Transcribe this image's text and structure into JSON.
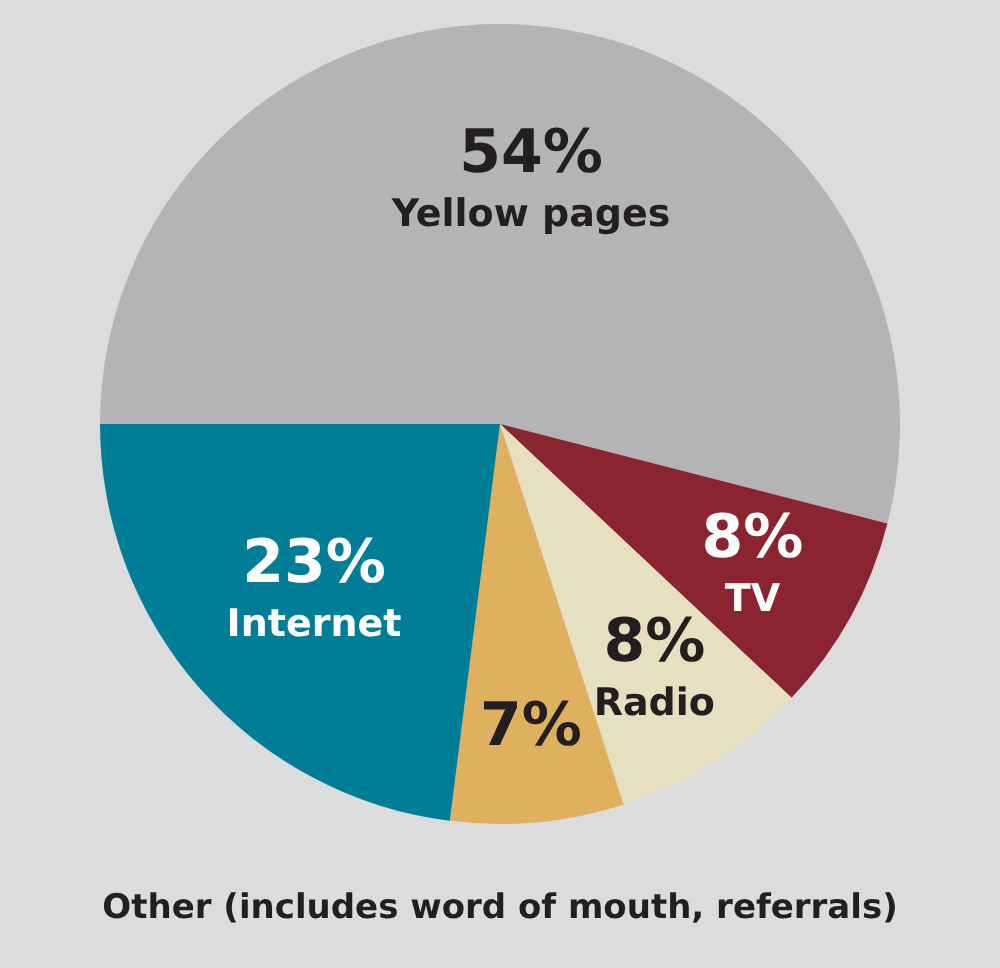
{
  "chart_data": {
    "type": "pie",
    "categories": [
      "Yellow pages",
      "TV",
      "Radio",
      "Other (includes word of mouth, referrals)",
      "Internet"
    ],
    "values": [
      54,
      8,
      8,
      7,
      23
    ],
    "value_labels": [
      "54%",
      "8%",
      "8%",
      "7%",
      "23%"
    ],
    "colors": [
      "#b4b4b6",
      "#8a2431",
      "#e6dfc0",
      "#dfb15f",
      "#007e98"
    ]
  }
}
